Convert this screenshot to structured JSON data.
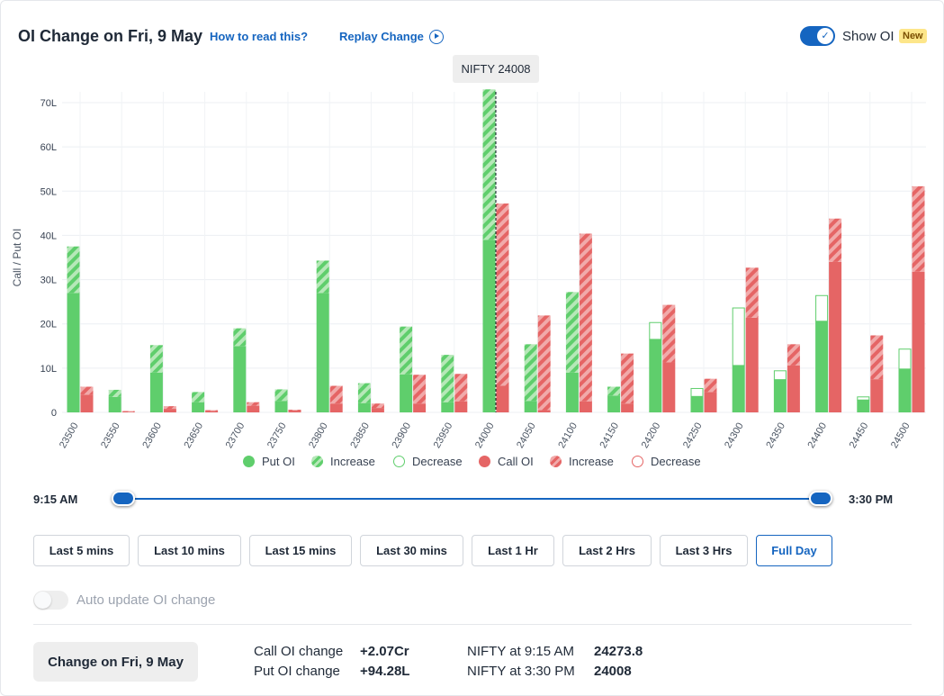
{
  "header": {
    "title": "OI Change on Fri, 9 May",
    "how_to_read": "How to read this?",
    "replay": "Replay Change",
    "show_oi": "Show OI",
    "new_badge": "New",
    "show_oi_on": true
  },
  "chart_data": {
    "type": "bar",
    "spot_label": "NIFTY 24008",
    "spot_strike": 24000,
    "ylabel": "Call / Put OI",
    "xlabel": "",
    "ylim": [
      0,
      70
    ],
    "yticks": [
      "0",
      "10L",
      "20L",
      "30L",
      "40L",
      "50L",
      "60L",
      "70L"
    ],
    "grid": true,
    "categories": [
      "23500",
      "23550",
      "23600",
      "23650",
      "23700",
      "23750",
      "23800",
      "23850",
      "23900",
      "23950",
      "24000",
      "24050",
      "24100",
      "24150",
      "24200",
      "24250",
      "24300",
      "24350",
      "24400",
      "24450",
      "24500"
    ],
    "series": [
      {
        "name": "Put OI",
        "base": [
          27,
          3.5,
          9,
          2.3,
          15,
          2.6,
          27,
          2.1,
          8.6,
          2.3,
          39,
          2.6,
          9,
          3.8,
          16.5,
          3.6,
          10.6,
          7.4,
          20.6,
          2.8,
          9.8
        ],
        "change": [
          10.5,
          1.6,
          6.2,
          2.3,
          4,
          2.6,
          7.3,
          4.5,
          10.8,
          10.7,
          34,
          12.8,
          18.2,
          2,
          -3.8,
          -1.8,
          -13,
          -2,
          -5.8,
          -0.7,
          -4.5
        ]
      },
      {
        "name": "Call OI",
        "base": [
          4,
          0.1,
          0.8,
          0.3,
          1.5,
          0.4,
          2,
          1,
          2,
          2.5,
          6,
          0.5,
          2.5,
          2,
          11.3,
          4.6,
          21.4,
          10.6,
          34,
          7.5,
          31.8
        ],
        "change": [
          1.8,
          0.2,
          0.6,
          0.2,
          0.8,
          0.2,
          4,
          1,
          6.5,
          6.2,
          41.2,
          21.4,
          37.9,
          11.3,
          13,
          3,
          11.3,
          4.8,
          9.8,
          9.9,
          19.3
        ]
      }
    ],
    "colors": {
      "put": "#5fce6c",
      "put_light": "#b6e8b8",
      "call": "#e56565",
      "call_light": "#f1aaaa"
    },
    "legend": [
      "Put OI",
      "Increase",
      "Decrease",
      "Call OI",
      "Increase",
      "Decrease"
    ],
    "legend_position": "bottom"
  },
  "timeline": {
    "start": "9:15 AM",
    "end": "3:30 PM",
    "from_fraction": 0,
    "to_fraction": 1
  },
  "ranges": {
    "items": [
      "Last 5 mins",
      "Last 10 mins",
      "Last 15 mins",
      "Last 30 mins",
      "Last 1 Hr",
      "Last 2 Hrs",
      "Last 3 Hrs",
      "Full Day"
    ],
    "selected": "Full Day"
  },
  "auto_update": {
    "label": "Auto update OI change",
    "on": false
  },
  "summary": {
    "button": "Change on Fri, 9 May",
    "call_label": "Call OI change",
    "call_value": "+2.07Cr",
    "put_label": "Put OI change",
    "put_value": "+94.28L",
    "spot_open_label": "NIFTY at 9:15 AM",
    "spot_open_value": "24273.8",
    "spot_close_label": "NIFTY at 3:30 PM",
    "spot_close_value": "24008"
  }
}
